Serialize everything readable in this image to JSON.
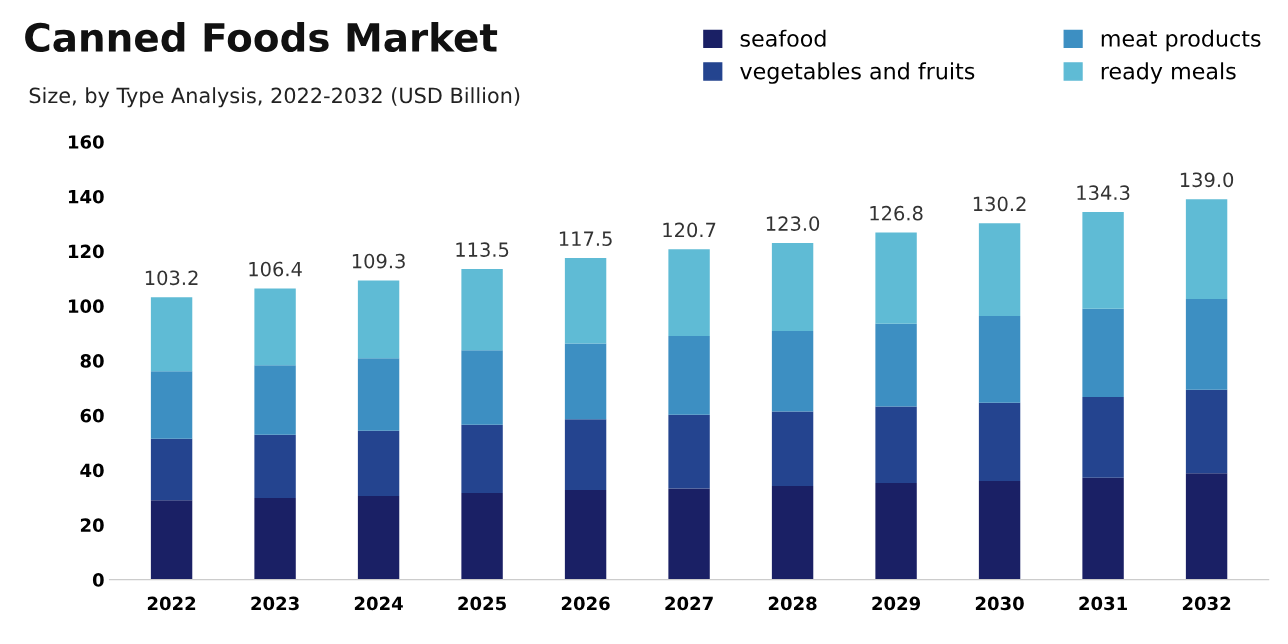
{
  "chart_data": {
    "type": "bar",
    "title": "Canned Foods Market",
    "subtitle": "Size, by Type Analysis, 2022-2032 (USD Billion)",
    "categories": [
      "2022",
      "2023",
      "2024",
      "2025",
      "2026",
      "2027",
      "2028",
      "2029",
      "2030",
      "2031",
      "2032"
    ],
    "stacked": true,
    "series": [
      {
        "name": "seafood",
        "color": "#1a2065",
        "values": [
          29.0,
          29.8,
          30.5,
          31.6,
          32.7,
          33.3,
          34.2,
          35.3,
          36.0,
          37.2,
          38.9
        ]
      },
      {
        "name": "vegetables and fruits",
        "color": "#24448f",
        "values": [
          22.5,
          23.1,
          23.9,
          25.0,
          25.9,
          26.9,
          27.2,
          27.9,
          28.6,
          29.5,
          30.5
        ]
      },
      {
        "name": "meat products",
        "color": "#3d8fc2",
        "values": [
          24.6,
          25.4,
          26.5,
          27.2,
          27.7,
          28.8,
          29.4,
          30.3,
          31.7,
          32.3,
          33.1
        ]
      },
      {
        "name": "ready meals",
        "color": "#5fbbd5",
        "values": [
          27.1,
          28.1,
          28.4,
          29.7,
          31.2,
          31.7,
          32.2,
          33.3,
          33.9,
          35.3,
          36.5
        ]
      }
    ],
    "totals": [
      "103.2",
      "106.4",
      "109.3",
      "113.5",
      "117.5",
      "120.7",
      "123.0",
      "126.8",
      "130.2",
      "134.3",
      "139.0"
    ],
    "ylim": [
      0,
      160
    ],
    "yticks": [
      0,
      20,
      40,
      60,
      80,
      100,
      120,
      140,
      160
    ],
    "grid": false,
    "legend": "top right"
  }
}
